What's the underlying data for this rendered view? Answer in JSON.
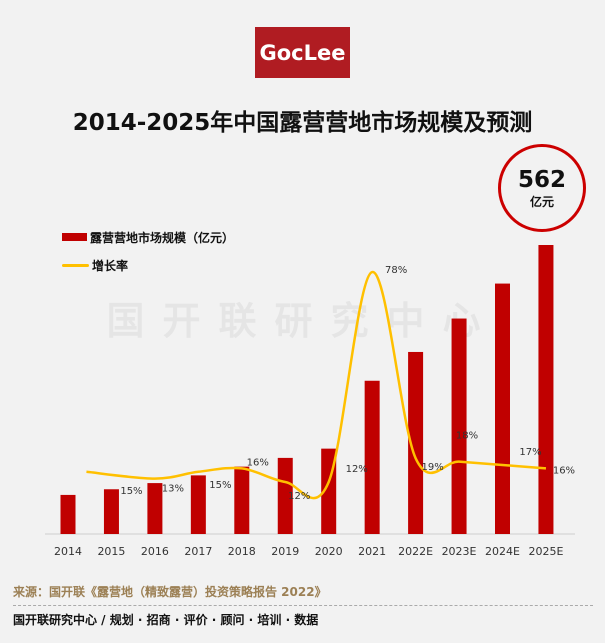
{
  "logo": "GocLee",
  "watermark": "国开联研究中心",
  "badge": {
    "value": "562",
    "unit": "亿元"
  },
  "chart_data": {
    "type": "bar+line",
    "title": "2014-2025年中国露营营地市场规模及预测",
    "categories": [
      "2014",
      "2015",
      "2016",
      "2017",
      "2018",
      "2019",
      "2020",
      "2021",
      "2022E",
      "2023E",
      "2024E",
      "2025E"
    ],
    "series": [
      {
        "name": "露营营地市场规模（亿元）",
        "type": "bar",
        "color": "#c00000",
        "values": [
          76,
          87,
          99,
          114,
          131,
          148,
          166,
          298,
          354,
          419,
          487,
          562
        ]
      },
      {
        "name": "增长率",
        "type": "line",
        "color": "#ffc000",
        "values": [
          null,
          15,
          13,
          15,
          16,
          12,
          12,
          78,
          19,
          18,
          17,
          16
        ],
        "labels": [
          "",
          "15%",
          "13%",
          "15%",
          "16%",
          "12%",
          "12%",
          "78%",
          "19%",
          "18%",
          "17%",
          "16%"
        ]
      }
    ],
    "ylim": [
      0,
      600
    ],
    "legend": "top-left"
  },
  "source": "来源：国开联《露营地（精致露营）投资策略报告 2022》",
  "footer": "国开联研究中心   /   规划 · 招商 · 评价 · 顾问 · 培训 · 数据"
}
